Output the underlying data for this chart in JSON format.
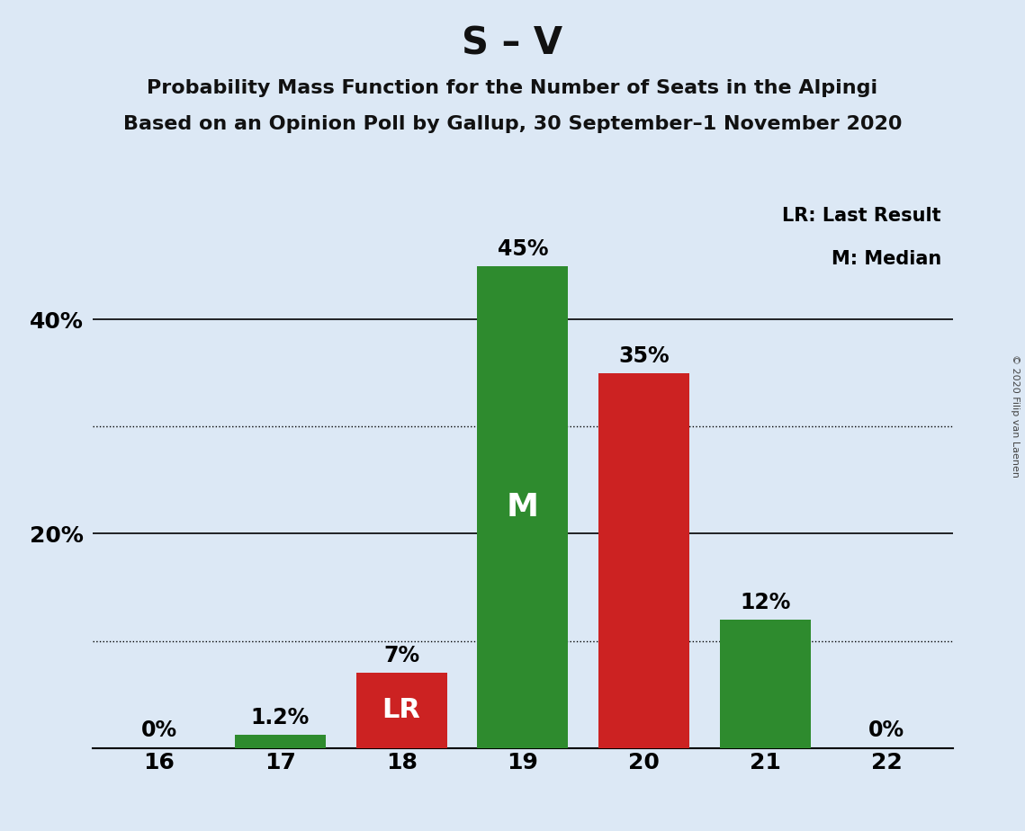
{
  "title": "S – V",
  "subtitle1": "Probability Mass Function for the Number of Seats in the Alpingi",
  "subtitle2": "Based on an Opinion Poll by Gallup, 30 September–1 November 2020",
  "copyright": "© 2020 Filip van Laenen",
  "seats": [
    16,
    17,
    18,
    19,
    20,
    21,
    22
  ],
  "values": [
    0.0,
    1.2,
    7.0,
    45.0,
    35.0,
    12.0,
    0.0
  ],
  "bar_colors": [
    "#2e8b2e",
    "#2e8b2e",
    "#cc2222",
    "#2e8b2e",
    "#cc2222",
    "#2e8b2e",
    "#2e8b2e"
  ],
  "top_labels": [
    "0%",
    "1.2%",
    "7%",
    "45%",
    "35%",
    "12%",
    "0%"
  ],
  "legend_lr": "LR: Last Result",
  "legend_m": "M: Median",
  "background_color": "#dce8f5",
  "ylim": [
    0,
    52
  ],
  "title_fontsize": 30,
  "subtitle_fontsize": 16,
  "bar_width": 0.75
}
